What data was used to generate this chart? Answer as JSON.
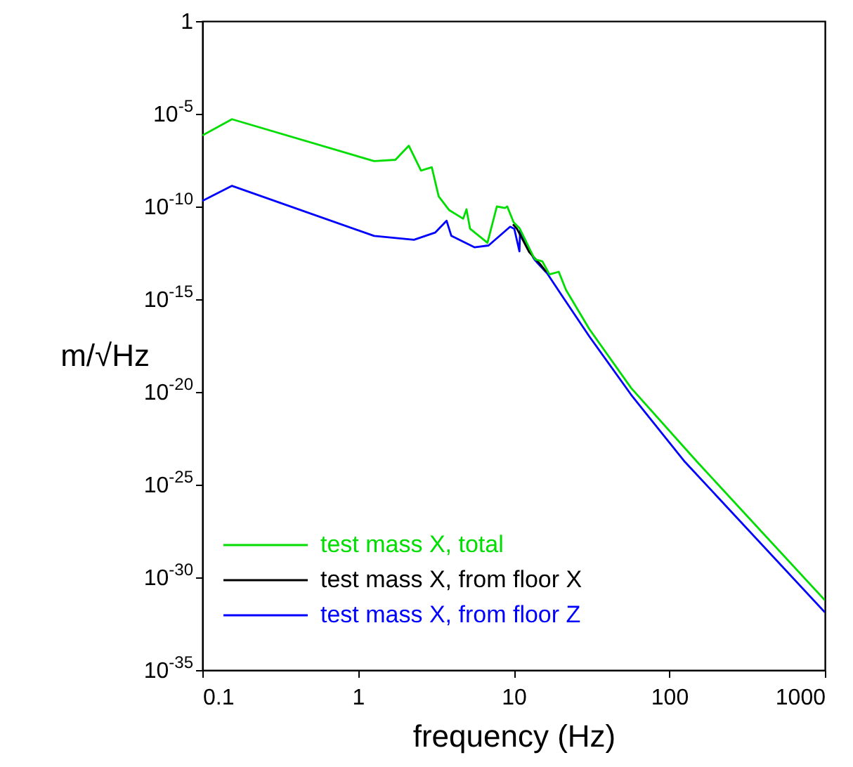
{
  "chart_data": {
    "type": "line",
    "xlabel": "frequency (Hz)",
    "ylabel": "m/√Hz",
    "log": "xy",
    "grid": false,
    "legend": "bottom left",
    "marker": "none",
    "line_style": "solid",
    "xlim": [
      0.1,
      1000
    ],
    "xticks": [
      0.1,
      1,
      10,
      100,
      1000
    ],
    "ylim": [
      1e-35,
      1
    ],
    "yticks": [
      {
        "value": 1e-35,
        "label": "10$^{-35}$"
      },
      {
        "value": 1e-30,
        "label": "10$^{-30}$"
      },
      {
        "value": 1e-25,
        "label": "10$^{-25}$"
      },
      {
        "value": 1e-20,
        "label": "10$^{-20}$"
      },
      {
        "value": 1e-15,
        "label": "10$^{-15}$"
      },
      {
        "value": 1e-10,
        "label": "10$^{-10}$"
      },
      {
        "value": 1e-05,
        "label": "10$^{-5}$"
      },
      1
    ],
    "series": [
      {
        "name": "test mass X, total",
        "color": "#00dd00",
        "x": [
          0.1,
          0.155,
          1.27,
          1.74,
          2.12,
          2.54,
          2.98,
          3.3,
          3.86,
          4.74,
          4.98,
          5.25,
          6.79,
          7.8,
          8.8,
          9.1,
          10,
          10.9,
          13.4,
          13.8,
          15.3,
          17,
          19.5,
          21.7,
          30.6,
          57,
          151,
          1000
        ],
        "values": [
          6.8e-07,
          5.1e-06,
          2.8e-08,
          3.3e-08,
          1.9e-07,
          8.7e-09,
          1.3e-08,
          3.5e-10,
          6.3e-11,
          2.2e-11,
          7.1e-11,
          6.3e-12,
          1.1e-12,
          1e-10,
          8.3e-11,
          1e-10,
          1.4e-11,
          6.9e-12,
          2e-13,
          1.4e-13,
          1.1e-13,
          2.2e-14,
          3e-14,
          3.2e-15,
          2.5e-17,
          1.6e-20,
          1.7e-24,
          5.8e-32
        ]
      },
      {
        "name": "test mass X, from floor X",
        "color": "#000000",
        "x": [
          9.9,
          10.5,
          12.6,
          14.8,
          16.2
        ],
        "values": [
          1.1e-11,
          6.3e-12,
          3.4e-13,
          7.9e-14,
          3e-14
        ]
      },
      {
        "name": "test mass X, from floor Z",
        "color": "#0000ff",
        "x": [
          0.1,
          0.155,
          1.27,
          2.29,
          3.13,
          3.71,
          3.98,
          5.6,
          6.9,
          9.5,
          10.1,
          10.9,
          11.0,
          13.4,
          13.8,
          16.4,
          20.2,
          30.6,
          57,
          126,
          1000
        ],
        "values": [
          2e-10,
          1.3e-09,
          2.6e-12,
          1.6e-12,
          3.9e-12,
          1.7e-11,
          2.6e-12,
          6.3e-13,
          7.9e-13,
          8.1e-12,
          6.3e-12,
          3.8e-13,
          5e-12,
          1.7e-13,
          1.2e-13,
          2.5e-14,
          1.8e-15,
          1e-17,
          6.9e-21,
          1.7e-24,
          1.3e-32
        ]
      }
    ]
  }
}
